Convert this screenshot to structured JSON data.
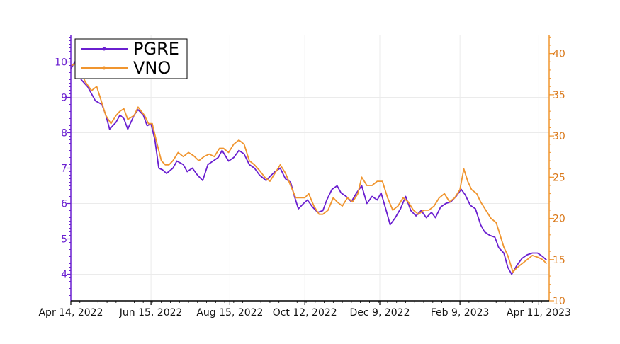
{
  "chart_data": {
    "type": "line",
    "title": "",
    "xlabel": "",
    "ylabel": "",
    "colors": {
      "PGRE": "#6a1fd0",
      "VNO": "#f0952f"
    },
    "legend_position": "top-left",
    "grid": true,
    "x_range": [
      "2022-04-14",
      "2023-04-19"
    ],
    "x_ticks": [
      {
        "date": "2022-04-14",
        "label": "Apr 14, 2022"
      },
      {
        "date": "2022-06-15",
        "label": "Jun 15, 2022"
      },
      {
        "date": "2022-08-15",
        "label": "Aug 15, 2022"
      },
      {
        "date": "2022-10-12",
        "label": "Oct 12, 2022"
      },
      {
        "date": "2022-12-09",
        "label": "Dec 9, 2022"
      },
      {
        "date": "2023-02-09",
        "label": "Feb 9, 2023"
      },
      {
        "date": "2023-04-11",
        "label": "Apr 11, 2023"
      }
    ],
    "y_left": {
      "series": "PGRE",
      "range": [
        3.25,
        10.75
      ],
      "ticks": [
        4,
        5,
        6,
        7,
        8,
        9,
        10
      ]
    },
    "y_right": {
      "series": "VNO",
      "range": [
        10,
        42.2
      ],
      "ticks": [
        10,
        15,
        20,
        25,
        30,
        35,
        40
      ]
    },
    "series": [
      {
        "name": "PGRE",
        "axis": "left",
        "points": [
          [
            "2022-04-14",
            9.8
          ],
          [
            "2022-04-17",
            10.0
          ],
          [
            "2022-04-22",
            9.5
          ],
          [
            "2022-04-27",
            9.3
          ],
          [
            "2022-04-30",
            9.1
          ],
          [
            "2022-05-03",
            8.9
          ],
          [
            "2022-05-08",
            8.8
          ],
          [
            "2022-05-11",
            8.5
          ],
          [
            "2022-05-14",
            8.1
          ],
          [
            "2022-05-19",
            8.3
          ],
          [
            "2022-05-22",
            8.5
          ],
          [
            "2022-05-25",
            8.4
          ],
          [
            "2022-05-28",
            8.1
          ],
          [
            "2022-06-02",
            8.5
          ],
          [
            "2022-06-05",
            8.65
          ],
          [
            "2022-06-09",
            8.5
          ],
          [
            "2022-06-12",
            8.2
          ],
          [
            "2022-06-15",
            8.25
          ],
          [
            "2022-06-18",
            7.8
          ],
          [
            "2022-06-21",
            7.0
          ],
          [
            "2022-06-24",
            6.95
          ],
          [
            "2022-06-27",
            6.85
          ],
          [
            "2022-07-02",
            7.0
          ],
          [
            "2022-07-05",
            7.2
          ],
          [
            "2022-07-10",
            7.1
          ],
          [
            "2022-07-13",
            6.9
          ],
          [
            "2022-07-17",
            7.0
          ],
          [
            "2022-07-21",
            6.8
          ],
          [
            "2022-07-25",
            6.65
          ],
          [
            "2022-07-29",
            7.1
          ],
          [
            "2022-08-02",
            7.2
          ],
          [
            "2022-08-06",
            7.3
          ],
          [
            "2022-08-09",
            7.5
          ],
          [
            "2022-08-14",
            7.2
          ],
          [
            "2022-08-18",
            7.3
          ],
          [
            "2022-08-22",
            7.5
          ],
          [
            "2022-08-26",
            7.4
          ],
          [
            "2022-08-30",
            7.1
          ],
          [
            "2022-09-03",
            7.0
          ],
          [
            "2022-09-07",
            6.8
          ],
          [
            "2022-09-12",
            6.65
          ],
          [
            "2022-09-16",
            6.8
          ],
          [
            "2022-09-19",
            6.9
          ],
          [
            "2022-09-23",
            7.0
          ],
          [
            "2022-09-27",
            6.7
          ],
          [
            "2022-10-01",
            6.6
          ],
          [
            "2022-10-04",
            6.2
          ],
          [
            "2022-10-07",
            5.85
          ],
          [
            "2022-10-11",
            6.0
          ],
          [
            "2022-10-14",
            6.1
          ],
          [
            "2022-10-18",
            5.9
          ],
          [
            "2022-10-22",
            5.75
          ],
          [
            "2022-10-26",
            5.8
          ],
          [
            "2022-10-29",
            6.1
          ],
          [
            "2022-11-02",
            6.4
          ],
          [
            "2022-11-06",
            6.5
          ],
          [
            "2022-11-09",
            6.3
          ],
          [
            "2022-11-13",
            6.2
          ],
          [
            "2022-11-17",
            6.05
          ],
          [
            "2022-11-21",
            6.3
          ],
          [
            "2022-11-25",
            6.5
          ],
          [
            "2022-11-29",
            6.0
          ],
          [
            "2022-12-03",
            6.2
          ],
          [
            "2022-12-07",
            6.1
          ],
          [
            "2022-12-10",
            6.3
          ],
          [
            "2022-12-14",
            5.8
          ],
          [
            "2022-12-17",
            5.4
          ],
          [
            "2022-12-21",
            5.6
          ],
          [
            "2022-12-25",
            5.85
          ],
          [
            "2022-12-29",
            6.2
          ],
          [
            "2023-01-02",
            5.8
          ],
          [
            "2023-01-06",
            5.65
          ],
          [
            "2023-01-10",
            5.8
          ],
          [
            "2023-01-14",
            5.6
          ],
          [
            "2023-01-18",
            5.75
          ],
          [
            "2023-01-21",
            5.6
          ],
          [
            "2023-01-25",
            5.9
          ],
          [
            "2023-01-29",
            6.0
          ],
          [
            "2023-02-02",
            6.05
          ],
          [
            "2023-02-06",
            6.2
          ],
          [
            "2023-02-10",
            6.4
          ],
          [
            "2023-02-13",
            6.25
          ],
          [
            "2023-02-17",
            5.95
          ],
          [
            "2023-02-21",
            5.85
          ],
          [
            "2023-02-25",
            5.4
          ],
          [
            "2023-02-28",
            5.2
          ],
          [
            "2023-03-04",
            5.1
          ],
          [
            "2023-03-08",
            5.05
          ],
          [
            "2023-03-11",
            4.75
          ],
          [
            "2023-03-15",
            4.6
          ],
          [
            "2023-03-18",
            4.2
          ],
          [
            "2023-03-21",
            4.0
          ],
          [
            "2023-03-25",
            4.25
          ],
          [
            "2023-03-29",
            4.45
          ],
          [
            "2023-04-02",
            4.55
          ],
          [
            "2023-04-06",
            4.6
          ],
          [
            "2023-04-10",
            4.6
          ],
          [
            "2023-04-14",
            4.5
          ],
          [
            "2023-04-17",
            4.4
          ]
        ]
      },
      {
        "name": "VNO",
        "axis": "right",
        "points": [
          [
            "2022-04-14",
            38.5
          ],
          [
            "2022-04-18",
            38.8
          ],
          [
            "2022-04-22",
            37.8
          ],
          [
            "2022-04-25",
            36.6
          ],
          [
            "2022-04-30",
            35.5
          ],
          [
            "2022-05-04",
            36.0
          ],
          [
            "2022-05-07",
            34.5
          ],
          [
            "2022-05-11",
            32.5
          ],
          [
            "2022-05-15",
            31.5
          ],
          [
            "2022-05-19",
            32.5
          ],
          [
            "2022-05-22",
            33.0
          ],
          [
            "2022-05-25",
            33.3
          ],
          [
            "2022-05-28",
            32.0
          ],
          [
            "2022-06-02",
            32.5
          ],
          [
            "2022-06-05",
            33.5
          ],
          [
            "2022-06-10",
            32.5
          ],
          [
            "2022-06-13",
            31.5
          ],
          [
            "2022-06-16",
            31.5
          ],
          [
            "2022-06-19",
            29.5
          ],
          [
            "2022-06-23",
            27.0
          ],
          [
            "2022-06-26",
            26.5
          ],
          [
            "2022-06-29",
            26.5
          ],
          [
            "2022-07-02",
            27.0
          ],
          [
            "2022-07-06",
            28.0
          ],
          [
            "2022-07-10",
            27.5
          ],
          [
            "2022-07-14",
            28.0
          ],
          [
            "2022-07-18",
            27.6
          ],
          [
            "2022-07-22",
            27.0
          ],
          [
            "2022-07-26",
            27.5
          ],
          [
            "2022-07-30",
            27.8
          ],
          [
            "2022-08-03",
            27.5
          ],
          [
            "2022-08-07",
            28.5
          ],
          [
            "2022-08-10",
            28.5
          ],
          [
            "2022-08-14",
            28.0
          ],
          [
            "2022-08-18",
            29.0
          ],
          [
            "2022-08-22",
            29.5
          ],
          [
            "2022-08-26",
            29.0
          ],
          [
            "2022-08-30",
            27.0
          ],
          [
            "2022-09-03",
            26.5
          ],
          [
            "2022-09-07",
            25.8
          ],
          [
            "2022-09-11",
            25.0
          ],
          [
            "2022-09-15",
            24.5
          ],
          [
            "2022-09-19",
            25.5
          ],
          [
            "2022-09-23",
            26.5
          ],
          [
            "2022-09-27",
            25.5
          ],
          [
            "2022-10-01",
            24.0
          ],
          [
            "2022-10-05",
            22.5
          ],
          [
            "2022-10-08",
            22.5
          ],
          [
            "2022-10-12",
            22.5
          ],
          [
            "2022-10-15",
            23.0
          ],
          [
            "2022-10-19",
            21.5
          ],
          [
            "2022-10-23",
            20.5
          ],
          [
            "2022-10-26",
            20.5
          ],
          [
            "2022-10-30",
            21.0
          ],
          [
            "2022-11-03",
            22.5
          ],
          [
            "2022-11-06",
            22.0
          ],
          [
            "2022-11-10",
            21.5
          ],
          [
            "2022-11-14",
            22.5
          ],
          [
            "2022-11-18",
            22.0
          ],
          [
            "2022-11-22",
            23.0
          ],
          [
            "2022-11-25",
            25.0
          ],
          [
            "2022-11-29",
            24.0
          ],
          [
            "2022-12-03",
            24.0
          ],
          [
            "2022-12-07",
            24.5
          ],
          [
            "2022-12-11",
            24.5
          ],
          [
            "2022-12-15",
            22.5
          ],
          [
            "2022-12-19",
            21.0
          ],
          [
            "2022-12-23",
            21.5
          ],
          [
            "2022-12-27",
            22.5
          ],
          [
            "2022-12-31",
            22.0
          ],
          [
            "2023-01-04",
            21.0
          ],
          [
            "2023-01-08",
            20.5
          ],
          [
            "2023-01-12",
            21.0
          ],
          [
            "2023-01-16",
            21.0
          ],
          [
            "2023-01-20",
            21.5
          ],
          [
            "2023-01-24",
            22.5
          ],
          [
            "2023-01-28",
            23.0
          ],
          [
            "2023-02-01",
            22.0
          ],
          [
            "2023-02-05",
            22.5
          ],
          [
            "2023-02-09",
            23.5
          ],
          [
            "2023-02-12",
            26.0
          ],
          [
            "2023-02-15",
            24.5
          ],
          [
            "2023-02-18",
            23.5
          ],
          [
            "2023-02-22",
            23.0
          ],
          [
            "2023-02-25",
            22.0
          ],
          [
            "2023-03-01",
            21.0
          ],
          [
            "2023-03-05",
            20.0
          ],
          [
            "2023-03-09",
            19.5
          ],
          [
            "2023-03-12",
            18.0
          ],
          [
            "2023-03-15",
            16.5
          ],
          [
            "2023-03-18",
            15.5
          ],
          [
            "2023-03-22",
            13.5
          ],
          [
            "2023-03-25",
            14.0
          ],
          [
            "2023-03-29",
            14.5
          ],
          [
            "2023-04-02",
            15.0
          ],
          [
            "2023-04-06",
            15.5
          ],
          [
            "2023-04-10",
            15.3
          ],
          [
            "2023-04-14",
            15.0
          ],
          [
            "2023-04-17",
            14.5
          ]
        ]
      }
    ]
  }
}
